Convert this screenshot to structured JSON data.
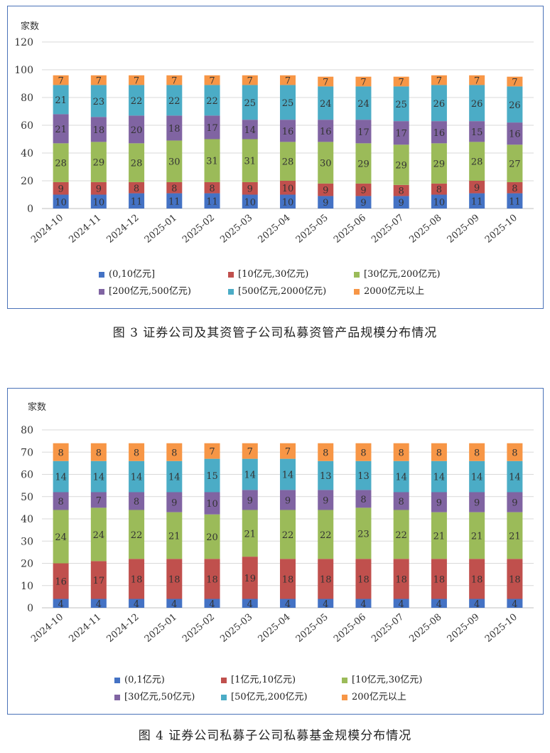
{
  "colors": {
    "c0": "#4472c4",
    "c1": "#c0504d",
    "c2": "#9bbb59",
    "c3": "#8064a2",
    "c4": "#4bacc6",
    "c5": "#f79646"
  },
  "figure1": {
    "caption": "图 3   证券公司及其资管子公司私募资管产品规模分布情况",
    "chart_data": {
      "type": "bar",
      "stacked": true,
      "ylabel": "家数",
      "ylim": [
        0,
        120
      ],
      "yticks": [
        0,
        20,
        40,
        60,
        80,
        100,
        120
      ],
      "grid": true,
      "legend_position": "bottom",
      "categories": [
        "2024-10",
        "2024-11",
        "2024-12",
        "2025-01",
        "2025-02",
        "2025-03",
        "2025-04",
        "2025-05",
        "2025-06",
        "2025-07",
        "2025-08",
        "2025-09",
        "2025-10"
      ],
      "series": [
        {
          "name": "(0,10亿元]",
          "color": "#4472c4",
          "values": [
            10,
            10,
            11,
            11,
            11,
            10,
            10,
            9,
            9,
            9,
            10,
            11,
            11
          ]
        },
        {
          "name": "[10亿元,30亿元)",
          "color": "#c0504d",
          "values": [
            9,
            9,
            8,
            8,
            8,
            9,
            10,
            9,
            9,
            8,
            8,
            9,
            8
          ]
        },
        {
          "name": "[30亿元,200亿元)",
          "color": "#9bbb59",
          "values": [
            28,
            29,
            28,
            30,
            31,
            31,
            28,
            30,
            29,
            29,
            29,
            28,
            27
          ]
        },
        {
          "name": "[200亿元,500亿元)",
          "color": "#8064a2",
          "values": [
            21,
            18,
            20,
            18,
            17,
            14,
            16,
            16,
            17,
            17,
            16,
            15,
            16
          ]
        },
        {
          "name": "[500亿元,2000亿元)",
          "color": "#4bacc6",
          "values": [
            21,
            23,
            22,
            22,
            22,
            25,
            25,
            24,
            24,
            25,
            26,
            26,
            26
          ]
        },
        {
          "name": "2000亿元以上",
          "color": "#f79646",
          "values": [
            7,
            7,
            7,
            7,
            7,
            7,
            7,
            7,
            7,
            7,
            7,
            7,
            7
          ]
        }
      ]
    }
  },
  "figure2": {
    "caption": "图 4   证券公司私募子公司私募基金规模分布情况",
    "chart_data": {
      "type": "bar",
      "stacked": true,
      "ylabel": "家数",
      "ylim": [
        0,
        80
      ],
      "yticks": [
        0,
        10,
        20,
        30,
        40,
        50,
        60,
        70,
        80
      ],
      "grid": true,
      "legend_position": "bottom",
      "categories": [
        "2024-10",
        "2024-11",
        "2024-12",
        "2025-01",
        "2025-02",
        "2025-03",
        "2025-04",
        "2025-05",
        "2025-06",
        "2025-07",
        "2025-08",
        "2025-09",
        "2025-10"
      ],
      "series": [
        {
          "name": "(0,1亿元)",
          "color": "#4472c4",
          "values": [
            4,
            4,
            4,
            4,
            4,
            4,
            4,
            4,
            4,
            4,
            4,
            4,
            4
          ]
        },
        {
          "name": "[1亿元,10亿元)",
          "color": "#c0504d",
          "values": [
            16,
            17,
            18,
            18,
            18,
            19,
            18,
            18,
            18,
            18,
            18,
            18,
            18
          ]
        },
        {
          "name": "[10亿元,30亿元)",
          "color": "#9bbb59",
          "values": [
            24,
            24,
            22,
            21,
            20,
            21,
            22,
            22,
            23,
            22,
            21,
            21,
            21
          ]
        },
        {
          "name": "[30亿元,50亿元)",
          "color": "#8064a2",
          "values": [
            8,
            7,
            8,
            9,
            10,
            9,
            9,
            9,
            8,
            8,
            9,
            9,
            9
          ]
        },
        {
          "name": "[50亿元,200亿元)",
          "color": "#4bacc6",
          "values": [
            14,
            14,
            14,
            14,
            15,
            14,
            14,
            13,
            13,
            14,
            14,
            14,
            14
          ]
        },
        {
          "name": "200亿元以上",
          "color": "#f79646",
          "values": [
            8,
            8,
            8,
            8,
            7,
            7,
            7,
            8,
            8,
            8,
            8,
            8,
            8
          ]
        }
      ]
    }
  }
}
